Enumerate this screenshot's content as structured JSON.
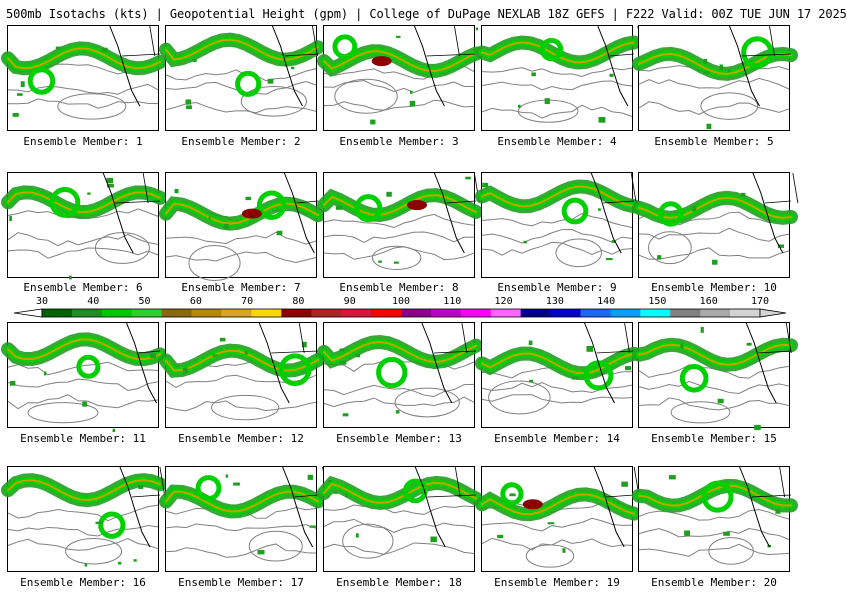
{
  "header": {
    "title": "500mb Isotachs (kts) | Geopotential Height (gpm) | College of DuPage NEXLAB   18Z GEFS | F222 Valid: 00Z TUE JUN 17 2025"
  },
  "panels": [
    {
      "label": "Ensemble Member: 1"
    },
    {
      "label": "Ensemble Member: 2"
    },
    {
      "label": "Ensemble Member: 3"
    },
    {
      "label": "Ensemble Member: 4"
    },
    {
      "label": "Ensemble Member: 5"
    },
    {
      "label": "Ensemble Member: 6"
    },
    {
      "label": "Ensemble Member: 7"
    },
    {
      "label": "Ensemble Member: 8"
    },
    {
      "label": "Ensemble Member: 9"
    },
    {
      "label": "Ensemble Member: 10"
    },
    {
      "label": "Ensemble Member: 11"
    },
    {
      "label": "Ensemble Member: 12"
    },
    {
      "label": "Ensemble Member: 13"
    },
    {
      "label": "Ensemble Member: 14"
    },
    {
      "label": "Ensemble Member: 15"
    },
    {
      "label": "Ensemble Member: 16"
    },
    {
      "label": "Ensemble Member: 17"
    },
    {
      "label": "Ensemble Member: 18"
    },
    {
      "label": "Ensemble Member: 19"
    },
    {
      "label": "Ensemble Member: 20"
    }
  ],
  "colorbar": {
    "tick_labels": [
      "30",
      "40",
      "50",
      "60",
      "70",
      "80",
      "90",
      "100",
      "110",
      "120",
      "130",
      "140",
      "150",
      "160",
      "170"
    ],
    "ticks": [
      30,
      40,
      50,
      60,
      70,
      80,
      90,
      100,
      110,
      120,
      130,
      140,
      150,
      160,
      170
    ],
    "colors": [
      "#006400",
      "#228b22",
      "#00c800",
      "#32cd32",
      "#8b6914",
      "#b8860b",
      "#daa520",
      "#ffd700",
      "#8b0000",
      "#b22222",
      "#dc143c",
      "#ff0000",
      "#8b008b",
      "#c000c0",
      "#ff00ff",
      "#ff66ff",
      "#00008b",
      "#0000cd",
      "#1e64ff",
      "#00a0ff",
      "#00ffff",
      "#808080",
      "#a9a9a9",
      "#d3d3d3"
    ]
  },
  "map_colors": {
    "wind_low": "#1ea01e",
    "wind_mid": "#00d000",
    "wind_core": "#c8a000",
    "wind_max": "#8b0000",
    "height_contour": "#808080",
    "borders": "#000000"
  }
}
